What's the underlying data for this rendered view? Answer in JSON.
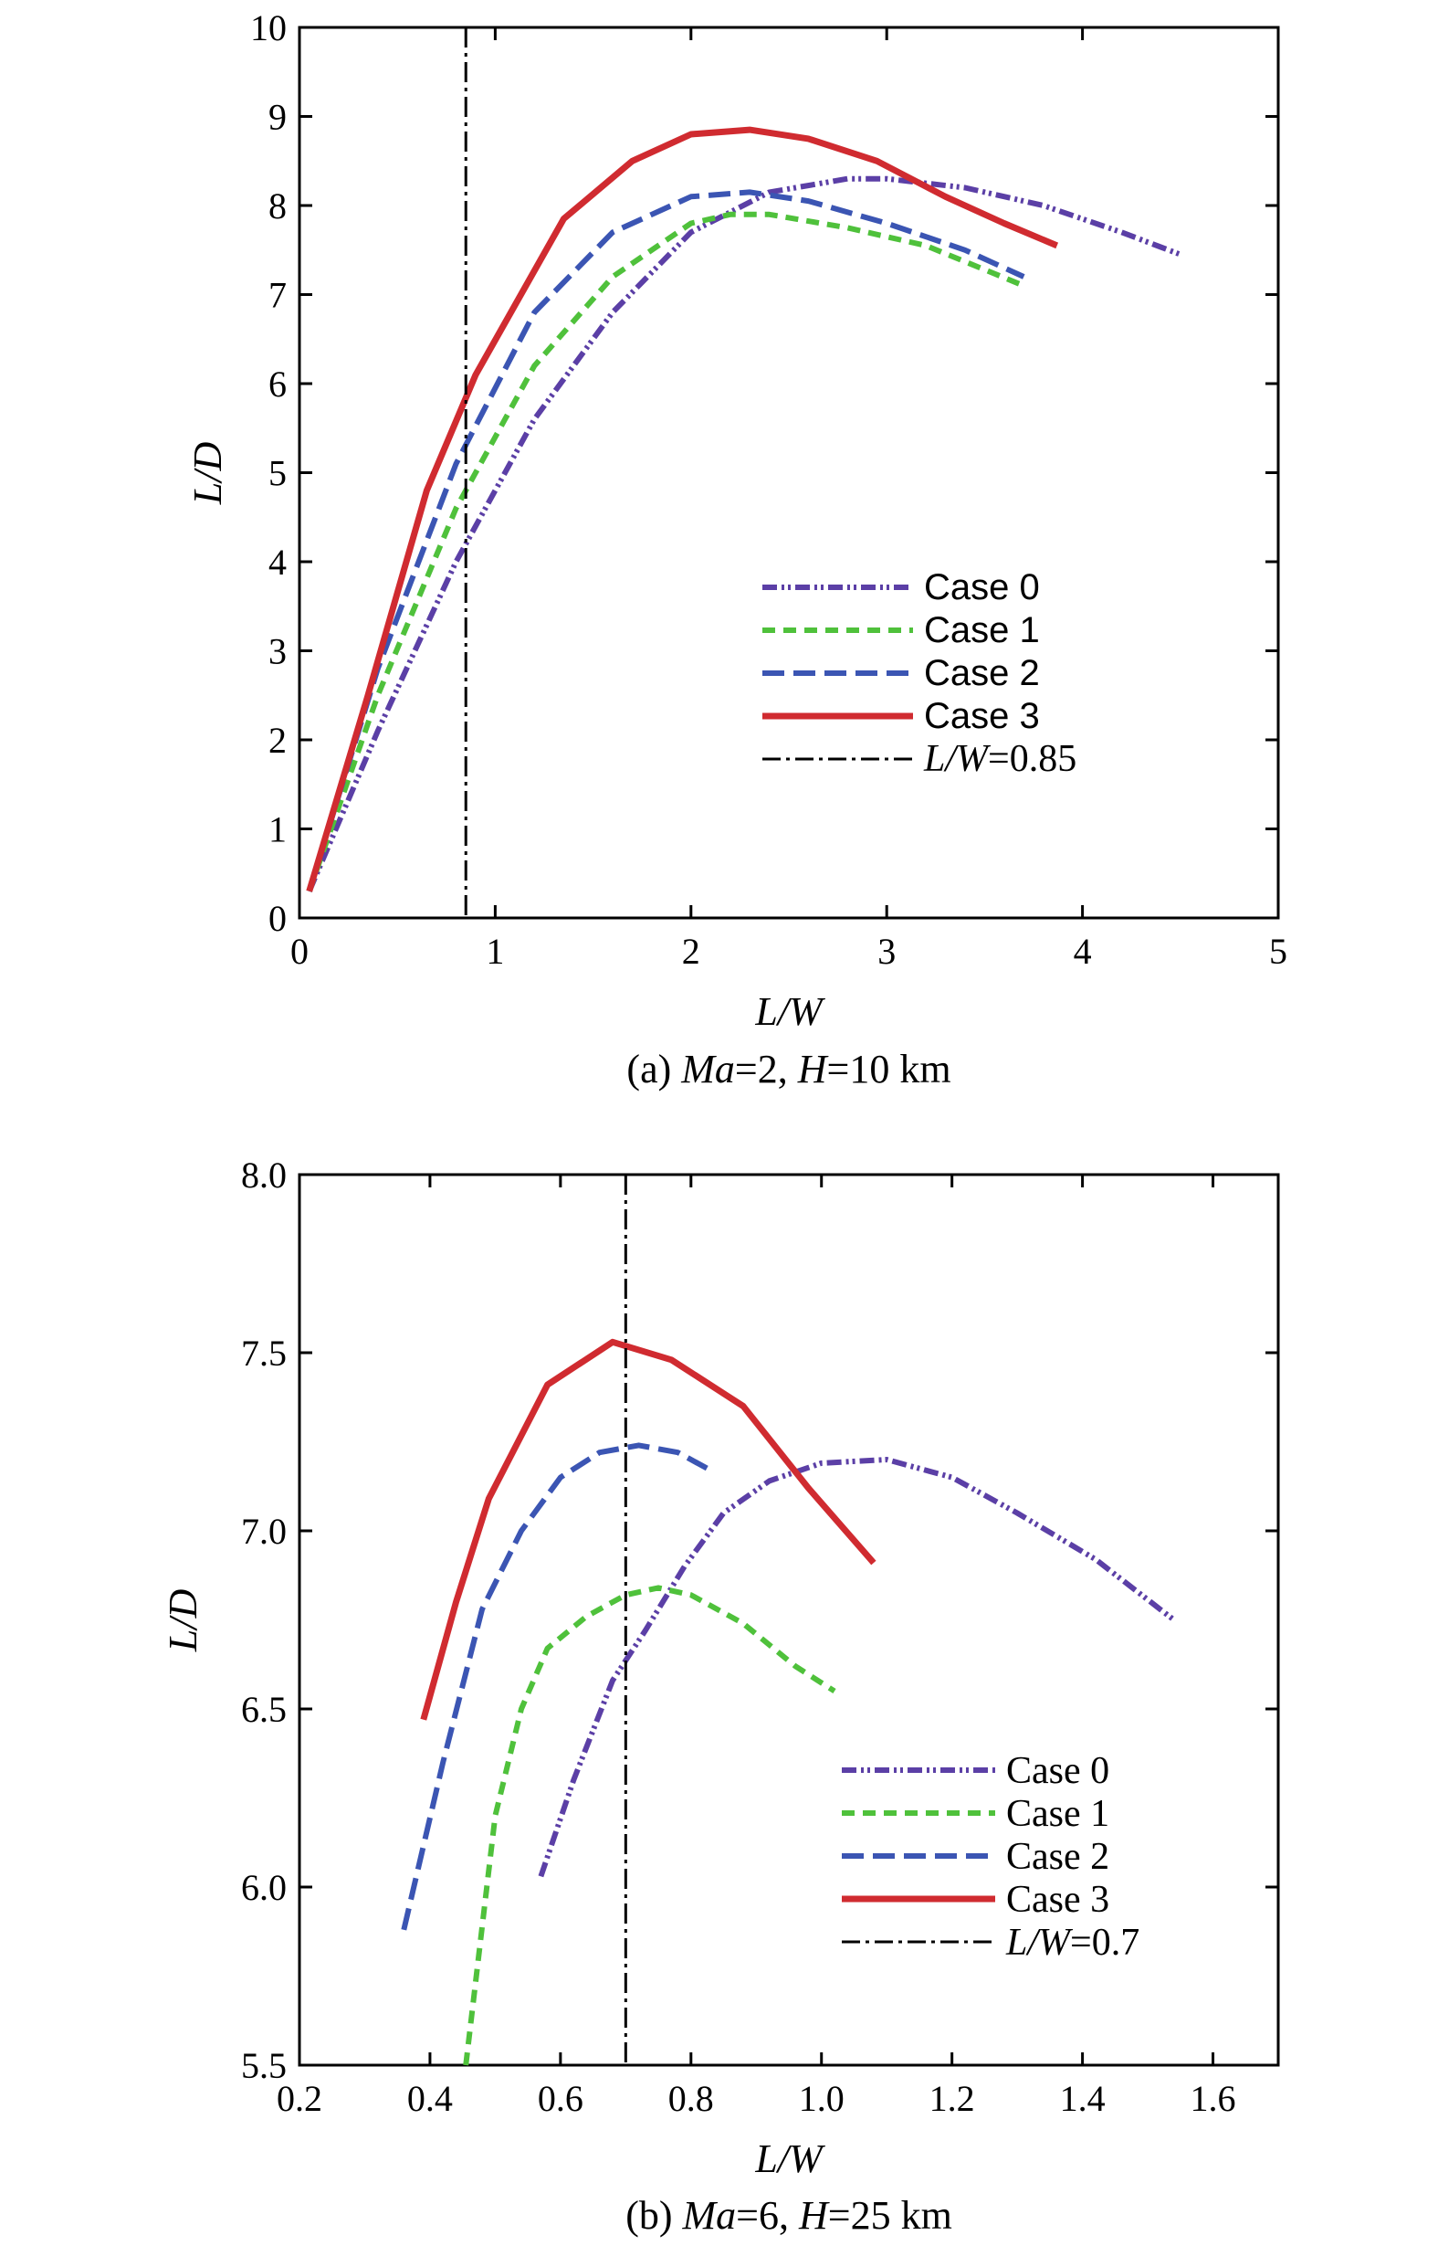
{
  "figure": {
    "panels": [
      {
        "caption_prefix": "(a) ",
        "caption_ma": "Ma",
        "caption_ma_val": "=2, ",
        "caption_h": "H",
        "caption_h_val": "=10 km",
        "xlabel": "L/W",
        "ylabel": "L/D",
        "xticks": [
          "0",
          "1",
          "2",
          "3",
          "4",
          "5"
        ],
        "yticks": [
          "0",
          "1",
          "2",
          "3",
          "4",
          "5",
          "6",
          "7",
          "8",
          "9",
          "10"
        ],
        "legend": [
          {
            "label": "Case 0"
          },
          {
            "label": "Case 1"
          },
          {
            "label": "Case 2"
          },
          {
            "label": "Case 3"
          },
          {
            "label_italic": "L/W",
            "label_rest": "=0.85"
          }
        ]
      },
      {
        "caption_prefix": "(b) ",
        "caption_ma": "Ma",
        "caption_ma_val": "=6, ",
        "caption_h": "H",
        "caption_h_val": "=25 km",
        "xlabel": "L/W",
        "ylabel": "L/D",
        "xticks": [
          "0.2",
          "0.4",
          "0.6",
          "0.8",
          "1.0",
          "1.2",
          "1.4",
          "1.6"
        ],
        "yticks": [
          "5.5",
          "6.0",
          "6.5",
          "7.0",
          "7.5",
          "8.0"
        ],
        "legend": [
          {
            "label": "Case 0"
          },
          {
            "label": "Case 1"
          },
          {
            "label": "Case 2"
          },
          {
            "label": "Case 3"
          },
          {
            "label_italic": "L/W",
            "label_rest": "=0.7"
          }
        ]
      }
    ]
  },
  "chart_data": [
    {
      "type": "line",
      "title": "(a) Ma=2, H=10 km",
      "xlabel": "L/W",
      "ylabel": "L/D",
      "xlim": [
        0,
        5
      ],
      "ylim": [
        0,
        10
      ],
      "xtick_values": [
        0,
        1,
        2,
        3,
        4,
        5
      ],
      "ytick_values": [
        0,
        1,
        2,
        3,
        4,
        5,
        6,
        7,
        8,
        9,
        10
      ],
      "vline": {
        "x": 0.85,
        "label": "L/W=0.85",
        "color": "#000000"
      },
      "series": [
        {
          "name": "Case 0",
          "color": "#5b3fa6",
          "dash": "dashdotdot",
          "x": [
            0.05,
            0.4,
            0.8,
            1.2,
            1.6,
            2.0,
            2.4,
            2.8,
            3.0,
            3.4,
            3.8,
            4.2,
            4.5
          ],
          "y": [
            0.3,
            2.1,
            4.0,
            5.6,
            6.8,
            7.7,
            8.15,
            8.3,
            8.3,
            8.2,
            8.0,
            7.7,
            7.45
          ]
        },
        {
          "name": "Case 1",
          "color": "#4fc13b",
          "dash": "shortdash",
          "x": [
            0.05,
            0.4,
            0.8,
            1.2,
            1.6,
            2.0,
            2.2,
            2.4,
            2.8,
            3.2,
            3.7
          ],
          "y": [
            0.3,
            2.5,
            4.6,
            6.2,
            7.2,
            7.8,
            7.9,
            7.9,
            7.75,
            7.55,
            7.1
          ]
        },
        {
          "name": "Case 2",
          "color": "#3b55b3",
          "dash": "longdash",
          "x": [
            0.05,
            0.4,
            0.8,
            1.2,
            1.6,
            2.0,
            2.3,
            2.6,
            3.0,
            3.4,
            3.7
          ],
          "y": [
            0.3,
            2.8,
            5.1,
            6.8,
            7.7,
            8.1,
            8.15,
            8.05,
            7.8,
            7.5,
            7.2
          ]
        },
        {
          "name": "Case 3",
          "color": "#d02b30",
          "dash": "solid",
          "x": [
            0.05,
            0.35,
            0.65,
            0.9,
            1.35,
            1.7,
            2.0,
            2.3,
            2.6,
            2.95,
            3.3,
            3.6,
            3.87
          ],
          "y": [
            0.3,
            2.5,
            4.8,
            6.1,
            7.85,
            8.5,
            8.8,
            8.85,
            8.75,
            8.5,
            8.1,
            7.8,
            7.55
          ]
        }
      ]
    },
    {
      "type": "line",
      "title": "(b) Ma=6, H=25 km",
      "xlabel": "L/W",
      "ylabel": "L/D",
      "xlim": [
        0.2,
        1.7
      ],
      "ylim": [
        5.5,
        8.0
      ],
      "xtick_values": [
        0.2,
        0.4,
        0.6,
        0.8,
        1.0,
        1.2,
        1.4,
        1.6
      ],
      "ytick_values": [
        5.5,
        6.0,
        6.5,
        7.0,
        7.5,
        8.0
      ],
      "vline": {
        "x": 0.7,
        "label": "L/W=0.7",
        "color": "#000000"
      },
      "series": [
        {
          "name": "Case 0",
          "color": "#5b3fa6",
          "dash": "dashdotdot",
          "x": [
            0.57,
            0.62,
            0.68,
            0.73,
            0.79,
            0.85,
            0.92,
            1.0,
            1.1,
            1.2,
            1.3,
            1.42,
            1.54
          ],
          "y": [
            6.03,
            6.3,
            6.58,
            6.72,
            6.9,
            7.05,
            7.14,
            7.19,
            7.2,
            7.15,
            7.05,
            6.92,
            6.75
          ]
        },
        {
          "name": "Case 1",
          "color": "#4fc13b",
          "dash": "shortdash",
          "x": [
            0.455,
            0.5,
            0.54,
            0.58,
            0.64,
            0.7,
            0.75,
            0.8,
            0.88,
            0.96,
            1.02
          ],
          "y": [
            5.5,
            6.2,
            6.5,
            6.67,
            6.76,
            6.82,
            6.84,
            6.82,
            6.74,
            6.62,
            6.55
          ]
        },
        {
          "name": "Case 2",
          "color": "#3b55b3",
          "dash": "longdash",
          "x": [
            0.36,
            0.42,
            0.48,
            0.54,
            0.6,
            0.66,
            0.72,
            0.78,
            0.83
          ],
          "y": [
            5.88,
            6.35,
            6.78,
            7.0,
            7.15,
            7.22,
            7.24,
            7.22,
            7.17
          ]
        },
        {
          "name": "Case 3",
          "color": "#d02b30",
          "dash": "solid",
          "x": [
            0.39,
            0.44,
            0.49,
            0.58,
            0.68,
            0.77,
            0.88,
            0.98,
            1.08
          ],
          "y": [
            6.47,
            6.8,
            7.09,
            7.41,
            7.53,
            7.48,
            7.35,
            7.12,
            6.91
          ]
        }
      ]
    }
  ]
}
